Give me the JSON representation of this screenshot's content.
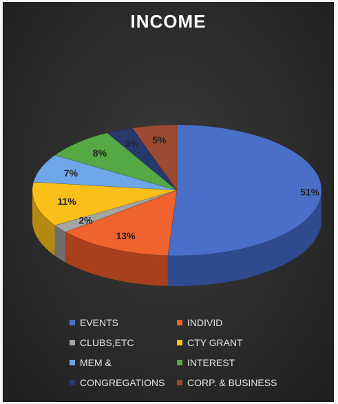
{
  "chart_data": {
    "type": "pie",
    "title": "INCOME",
    "slices": [
      {
        "label": "EVENTS",
        "value": 51,
        "display": "51%",
        "color": "#4a6fc9",
        "side": "#2f4a8e"
      },
      {
        "label": "INDIVID",
        "value": 13,
        "display": "13%",
        "color": "#f0622e",
        "side": "#a8401c"
      },
      {
        "label": "CLUBS,ETC",
        "value": 2,
        "display": "2%",
        "color": "#a5a5a5",
        "side": "#6e6e6e"
      },
      {
        "label": "CTY GRANT",
        "value": 11,
        "display": "11%",
        "color": "#fbbf1a",
        "side": "#b58811"
      },
      {
        "label": "MEM &",
        "value": 7,
        "display": "7%",
        "color": "#6fa6e8",
        "side": "#4a74a8"
      },
      {
        "label": "INTEREST",
        "value": 8,
        "display": "8%",
        "color": "#55a844",
        "side": "#3a7430"
      },
      {
        "label": "CONGREGATIONS",
        "value": 3,
        "display": "3%",
        "color": "#26386e",
        "side": "#18244a"
      },
      {
        "label": "CORP. & BUSINESS",
        "value": 5,
        "display": "5%",
        "color": "#9c4a31",
        "side": "#6a3020"
      }
    ],
    "legend_position": "bottom",
    "label_color": "#222222"
  }
}
